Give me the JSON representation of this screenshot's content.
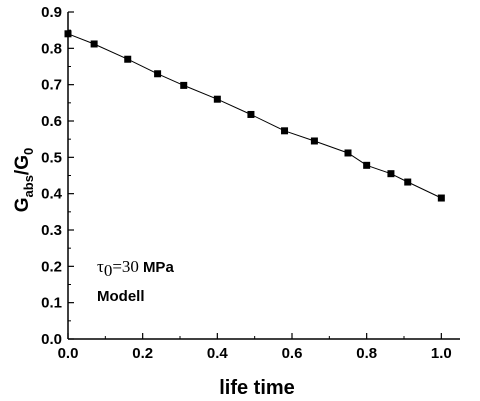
{
  "chart_data": {
    "type": "line",
    "xlabel": "life time",
    "ylabel": {
      "main": "G",
      "sub1": "abs",
      "sep": "/G",
      "sub2": "0"
    },
    "xlim": [
      0,
      1.05
    ],
    "ylim": [
      0,
      0.9
    ],
    "x_ticks": [
      "0.0",
      "0.2",
      "0.4",
      "0.6",
      "0.8",
      "1.0"
    ],
    "y_ticks": [
      "0.0",
      "0.1",
      "0.2",
      "0.3",
      "0.4",
      "0.5",
      "0.6",
      "0.7",
      "0.8",
      "0.9"
    ],
    "grid": false,
    "series": [
      {
        "marker": "square",
        "color": "#000000",
        "points": [
          {
            "x": 0.0,
            "y": 0.84
          },
          {
            "x": 0.07,
            "y": 0.812
          },
          {
            "x": 0.16,
            "y": 0.77
          },
          {
            "x": 0.24,
            "y": 0.73
          },
          {
            "x": 0.31,
            "y": 0.698
          },
          {
            "x": 0.4,
            "y": 0.66
          },
          {
            "x": 0.49,
            "y": 0.618
          },
          {
            "x": 0.58,
            "y": 0.573
          },
          {
            "x": 0.66,
            "y": 0.545
          },
          {
            "x": 0.75,
            "y": 0.512
          },
          {
            "x": 0.8,
            "y": 0.478
          },
          {
            "x": 0.865,
            "y": 0.455
          },
          {
            "x": 0.91,
            "y": 0.432
          },
          {
            "x": 1.0,
            "y": 0.388
          }
        ]
      }
    ],
    "annotations": {
      "tau": "τ",
      "tau_sub": "0",
      "tau_value": "=30",
      "tau_unit": "MPa",
      "model": "Modell"
    }
  }
}
